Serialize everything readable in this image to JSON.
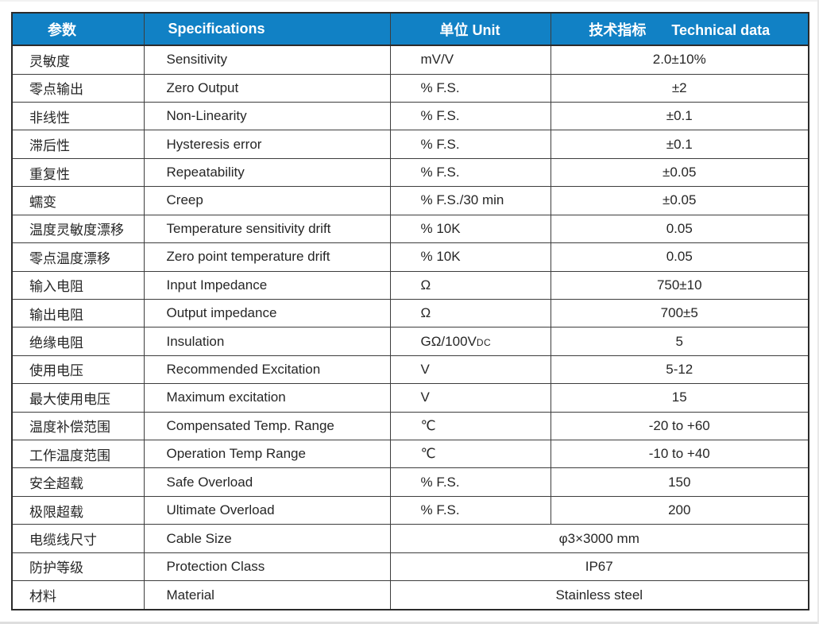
{
  "table": {
    "header": {
      "param_cn": "参数",
      "specifications": "Specifications",
      "unit": "单位 Unit",
      "technical_cn": "技术指标",
      "technical_en": "Technical data"
    },
    "rows": [
      {
        "param_cn": "灵敏度",
        "spec_en": "Sensitivity",
        "unit": "mV/V",
        "value": "2.0±10%"
      },
      {
        "param_cn": "零点输出",
        "spec_en": "Zero Output",
        "unit": "% F.S.",
        "value": "±2"
      },
      {
        "param_cn": "非线性",
        "spec_en": "Non-Linearity",
        "unit": "% F.S.",
        "value": "±0.1"
      },
      {
        "param_cn": "滞后性",
        "spec_en": "Hysteresis error",
        "unit": "% F.S.",
        "value": "±0.1"
      },
      {
        "param_cn": "重复性",
        "spec_en": "Repeatability",
        "unit": "% F.S.",
        "value": "±0.05"
      },
      {
        "param_cn": "蠕变",
        "spec_en": "Creep",
        "unit": "% F.S./30 min",
        "value": "±0.05"
      },
      {
        "param_cn": "温度灵敏度漂移",
        "spec_en": "Temperature sensitivity drift",
        "unit": "% 10K",
        "value": "0.05"
      },
      {
        "param_cn": "零点温度漂移",
        "spec_en": "Zero point temperature drift",
        "unit": "% 10K",
        "value": "0.05"
      },
      {
        "param_cn": "输入电阻",
        "spec_en": "Input Impedance",
        "unit": "Ω",
        "value": "750±10"
      },
      {
        "param_cn": "输出电阻",
        "spec_en": "Output impedance",
        "unit": "Ω",
        "value": "700±5"
      },
      {
        "param_cn": "绝缘电阻",
        "spec_en": "Insulation",
        "unit": "GΩ/100V",
        "unit_small": "DC",
        "value": "5"
      },
      {
        "param_cn": "使用电压",
        "spec_en": "Recommended Excitation",
        "unit": "V",
        "value": "5-12"
      },
      {
        "param_cn": "最大使用电压",
        "spec_en": "Maximum excitation",
        "unit": "V",
        "value": "15"
      },
      {
        "param_cn": "温度补偿范围",
        "spec_en": "Compensated Temp. Range",
        "unit": "℃",
        "value": "-20 to +60"
      },
      {
        "param_cn": "工作温度范围",
        "spec_en": "Operation Temp Range",
        "unit": "℃",
        "value": "-10 to +40"
      },
      {
        "param_cn": "安全超载",
        "spec_en": "Safe Overload",
        "unit": "% F.S.",
        "value": "150"
      },
      {
        "param_cn": "极限超载",
        "spec_en": "Ultimate Overload",
        "unit": "% F.S.",
        "value": "200"
      },
      {
        "param_cn": "电缆线尺寸",
        "spec_en": "Cable Size",
        "merged_value": "φ3×3000 mm"
      },
      {
        "param_cn": "防护等级",
        "spec_en": "Protection Class",
        "merged_value": "IP67"
      },
      {
        "param_cn": "材料",
        "spec_en": "Material",
        "merged_value": "Stainless steel"
      }
    ]
  },
  "colors": {
    "header_bg": "#1181c5",
    "header_text": "#ffffff",
    "grid_line": "#3d3d3d",
    "outer_border": "#2b2b2b",
    "body_text": "#262626",
    "page_bg": "#ffffff"
  }
}
